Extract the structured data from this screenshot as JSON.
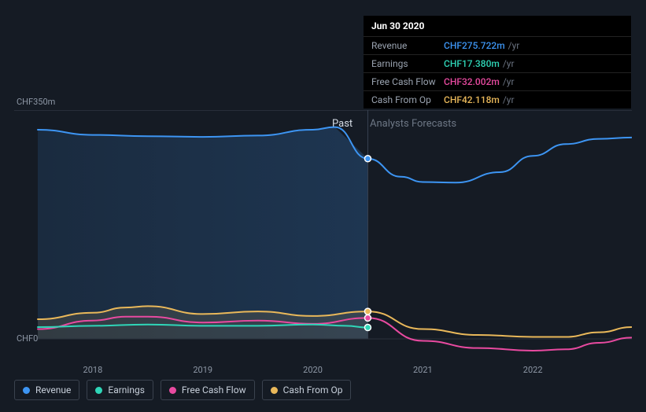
{
  "tooltip": {
    "date": "Jun 30 2020",
    "unit": "/yr",
    "rows": [
      {
        "label": "Revenue",
        "value": "CHF275.722m",
        "color": "#3d95f3"
      },
      {
        "label": "Earnings",
        "value": "CHF17.380m",
        "color": "#2fd6b8"
      },
      {
        "label": "Free Cash Flow",
        "value": "CHF32.002m",
        "color": "#e84aa0"
      },
      {
        "label": "Cash From Op",
        "value": "CHF42.118m",
        "color": "#e9b85a"
      }
    ]
  },
  "axis": {
    "y_top": "CHF350m",
    "y_bottom": "CHF0",
    "ylim": [
      0,
      350
    ],
    "x_ticks": [
      "2018",
      "2019",
      "2020",
      "2021",
      "2022"
    ],
    "x_domain_years": [
      2017.5,
      2022.9
    ]
  },
  "sections": {
    "past": "Past",
    "forecast": "Analysts Forecasts"
  },
  "legend": [
    {
      "key": "revenue",
      "label": "Revenue",
      "color": "#3d95f3"
    },
    {
      "key": "earnings",
      "label": "Earnings",
      "color": "#2fd6b8"
    },
    {
      "key": "fcf",
      "label": "Free Cash Flow",
      "color": "#e84aa0"
    },
    {
      "key": "cfo",
      "label": "Cash From Op",
      "color": "#e9b85a"
    }
  ],
  "series": {
    "revenue": {
      "color": "#3d95f3",
      "points": [
        [
          2017.5,
          320
        ],
        [
          2018.0,
          312
        ],
        [
          2018.5,
          310
        ],
        [
          2019.0,
          309
        ],
        [
          2019.5,
          311
        ],
        [
          2020.0,
          320
        ],
        [
          2020.2,
          324
        ],
        [
          2020.5,
          275.7
        ],
        [
          2020.8,
          248
        ],
        [
          2021.0,
          240
        ],
        [
          2021.3,
          239
        ],
        [
          2021.7,
          255
        ],
        [
          2022.0,
          280
        ],
        [
          2022.3,
          298
        ],
        [
          2022.6,
          306
        ],
        [
          2022.9,
          308
        ]
      ],
      "marker_at": 2020.5
    },
    "earnings": {
      "color": "#2fd6b8",
      "points": [
        [
          2017.5,
          18
        ],
        [
          2018.0,
          20
        ],
        [
          2018.5,
          22
        ],
        [
          2019.0,
          20
        ],
        [
          2019.5,
          20
        ],
        [
          2020.0,
          22
        ],
        [
          2020.3,
          20
        ],
        [
          2020.5,
          17.4
        ]
      ],
      "marker_at": 2020.5
    },
    "fcf": {
      "color": "#e84aa0",
      "points": [
        [
          2017.5,
          15
        ],
        [
          2018.0,
          28
        ],
        [
          2018.3,
          34
        ],
        [
          2018.5,
          34
        ],
        [
          2019.0,
          25
        ],
        [
          2019.5,
          28
        ],
        [
          2020.0,
          23
        ],
        [
          2020.5,
          32
        ],
        [
          2021.0,
          -3
        ],
        [
          2021.5,
          -14
        ],
        [
          2022.0,
          -18
        ],
        [
          2022.3,
          -16
        ],
        [
          2022.6,
          -6
        ],
        [
          2022.9,
          2
        ]
      ],
      "marker_at": 2020.5
    },
    "cfo": {
      "color": "#e9b85a",
      "points": [
        [
          2017.5,
          30
        ],
        [
          2018.0,
          40
        ],
        [
          2018.3,
          48
        ],
        [
          2018.5,
          50
        ],
        [
          2019.0,
          38
        ],
        [
          2019.5,
          42
        ],
        [
          2020.0,
          35
        ],
        [
          2020.5,
          42
        ],
        [
          2021.0,
          15
        ],
        [
          2021.5,
          6
        ],
        [
          2022.0,
          3
        ],
        [
          2022.3,
          3
        ],
        [
          2022.6,
          10
        ],
        [
          2022.9,
          18
        ]
      ],
      "marker_at": 2020.5
    }
  },
  "style": {
    "background": "#151b24",
    "grid_top_border": "#3a424e",
    "vline_x": 2020.5,
    "line_width": 2,
    "marker_radius": 4,
    "marker_stroke": "#ffffff",
    "past_fill_left": "rgba(61,149,243,0.13)",
    "past_fill_right": "rgba(61,149,243,0.22)"
  }
}
